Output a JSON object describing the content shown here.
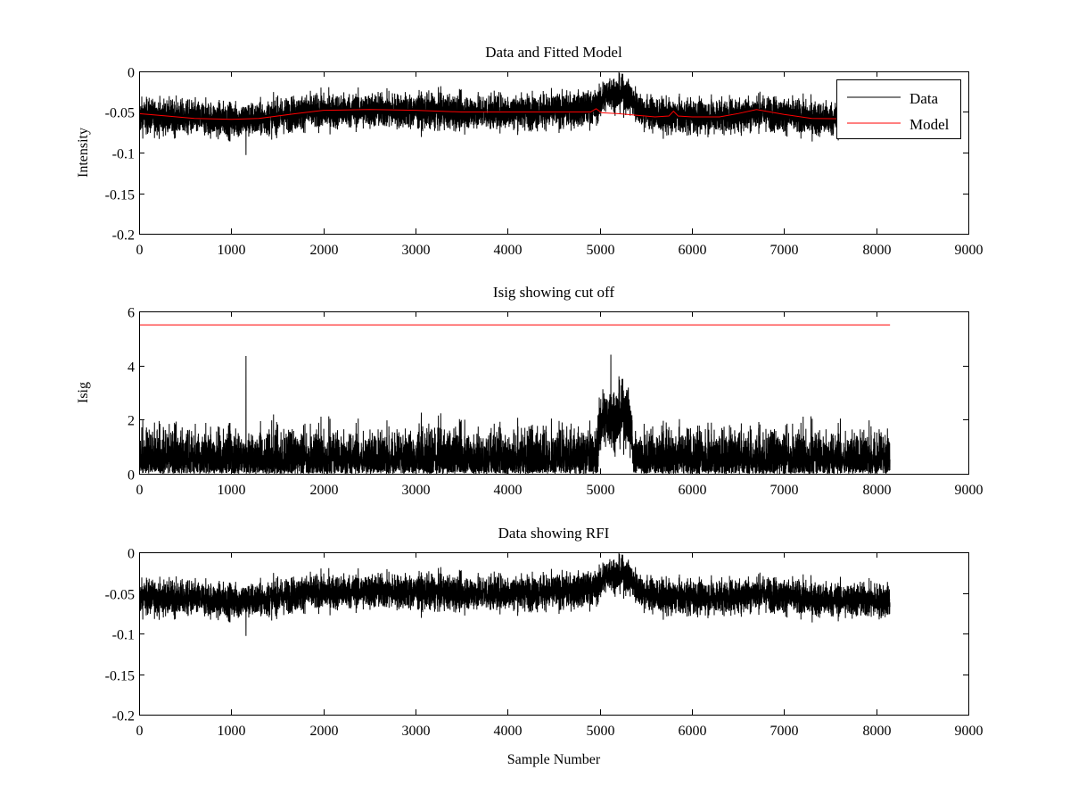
{
  "window": {
    "title": ""
  },
  "colors": {
    "data": "#000000",
    "model": "#ff0000",
    "axes": "#000000",
    "background": "#ffffff"
  },
  "chart_data": [
    {
      "type": "line",
      "title": "Data and Fitted Model",
      "xlabel": "",
      "ylabel": "Intensity",
      "xlim": [
        0,
        9000
      ],
      "ylim": [
        -0.2,
        0
      ],
      "xticks": [
        "0",
        "1000",
        "2000",
        "3000",
        "4000",
        "5000",
        "6000",
        "7000",
        "8000",
        "9000"
      ],
      "yticks": [
        "0",
        "-0.05",
        "-0.1",
        "-0.15",
        "-0.2"
      ],
      "grid": false,
      "legend": {
        "position": "top-right",
        "entries": [
          "Data",
          "Model"
        ]
      },
      "series": [
        {
          "name": "Data",
          "color": "#000000",
          "kind": "noisy",
          "n_samples": 8150,
          "baseline": [
            [
              0,
              -0.055
            ],
            [
              500,
              -0.057
            ],
            [
              1000,
              -0.06
            ],
            [
              1300,
              -0.059
            ],
            [
              1800,
              -0.05
            ],
            [
              2500,
              -0.048
            ],
            [
              3500,
              -0.05
            ],
            [
              4500,
              -0.049
            ],
            [
              4950,
              -0.045
            ],
            [
              5100,
              -0.025
            ],
            [
              5300,
              -0.03
            ],
            [
              5450,
              -0.048
            ],
            [
              5700,
              -0.056
            ],
            [
              6500,
              -0.054
            ],
            [
              6700,
              -0.05
            ],
            [
              7300,
              -0.058
            ],
            [
              8150,
              -0.06
            ]
          ],
          "noise_amplitude": 0.025
        },
        {
          "name": "Model",
          "color": "#ff0000",
          "kind": "line",
          "x": [
            0,
            300,
            600,
            1000,
            1300,
            1700,
            2000,
            2500,
            3000,
            3500,
            4000,
            4500,
            4900,
            4960,
            5020,
            5200,
            5600,
            5750,
            5800,
            5850,
            6000,
            6300,
            6500,
            6700,
            7000,
            7300,
            8150
          ],
          "y": [
            -0.052,
            -0.055,
            -0.058,
            -0.059,
            -0.058,
            -0.052,
            -0.048,
            -0.047,
            -0.048,
            -0.05,
            -0.05,
            -0.05,
            -0.05,
            -0.046,
            -0.051,
            -0.052,
            -0.056,
            -0.055,
            -0.049,
            -0.055,
            -0.056,
            -0.056,
            -0.052,
            -0.047,
            -0.053,
            -0.058,
            -0.059
          ]
        }
      ]
    },
    {
      "type": "line",
      "title": "Isig showing cut off",
      "xlabel": "",
      "ylabel": "Isig",
      "xlim": [
        0,
        9000
      ],
      "ylim": [
        0,
        6
      ],
      "xticks": [
        "0",
        "1000",
        "2000",
        "3000",
        "4000",
        "5000",
        "6000",
        "7000",
        "8000",
        "9000"
      ],
      "yticks": [
        "6",
        "4",
        "2",
        "0"
      ],
      "grid": false,
      "series": [
        {
          "color": "#000000",
          "kind": "abs-noise",
          "n_samples": 8150,
          "baseline": [
            [
              0,
              0.8
            ],
            [
              4950,
              0.8
            ],
            [
              5020,
              2.0
            ],
            [
              5300,
              2.2
            ],
            [
              5380,
              0.8
            ],
            [
              8150,
              0.8
            ]
          ],
          "noise_amplitude": 1.4,
          "spikes": [
            [
              1160,
              4.35
            ],
            [
              5120,
              4.4
            ]
          ]
        },
        {
          "color": "#ff0000",
          "kind": "line",
          "x": [
            0,
            8150
          ],
          "y": [
            5.5,
            5.5
          ]
        }
      ]
    },
    {
      "type": "line",
      "title": "Data showing RFI",
      "xlabel": "Sample Number",
      "ylabel": "",
      "xlim": [
        0,
        9000
      ],
      "ylim": [
        -0.2,
        0
      ],
      "xticks": [
        "0",
        "1000",
        "2000",
        "3000",
        "4000",
        "5000",
        "6000",
        "7000",
        "8000",
        "9000"
      ],
      "yticks": [
        "0",
        "-0.05",
        "-0.1",
        "-0.15",
        "-0.2"
      ],
      "grid": false,
      "series": [
        {
          "color": "#000000",
          "kind": "noisy",
          "n_samples": 8150,
          "baseline": [
            [
              0,
              -0.055
            ],
            [
              500,
              -0.057
            ],
            [
              1000,
              -0.06
            ],
            [
              1300,
              -0.059
            ],
            [
              1800,
              -0.05
            ],
            [
              2500,
              -0.048
            ],
            [
              3500,
              -0.05
            ],
            [
              4500,
              -0.049
            ],
            [
              4950,
              -0.045
            ],
            [
              5100,
              -0.025
            ],
            [
              5300,
              -0.03
            ],
            [
              5450,
              -0.048
            ],
            [
              5700,
              -0.056
            ],
            [
              6500,
              -0.054
            ],
            [
              6700,
              -0.05
            ],
            [
              7300,
              -0.058
            ],
            [
              8150,
              -0.06
            ]
          ],
          "noise_amplitude": 0.025
        }
      ]
    }
  ]
}
